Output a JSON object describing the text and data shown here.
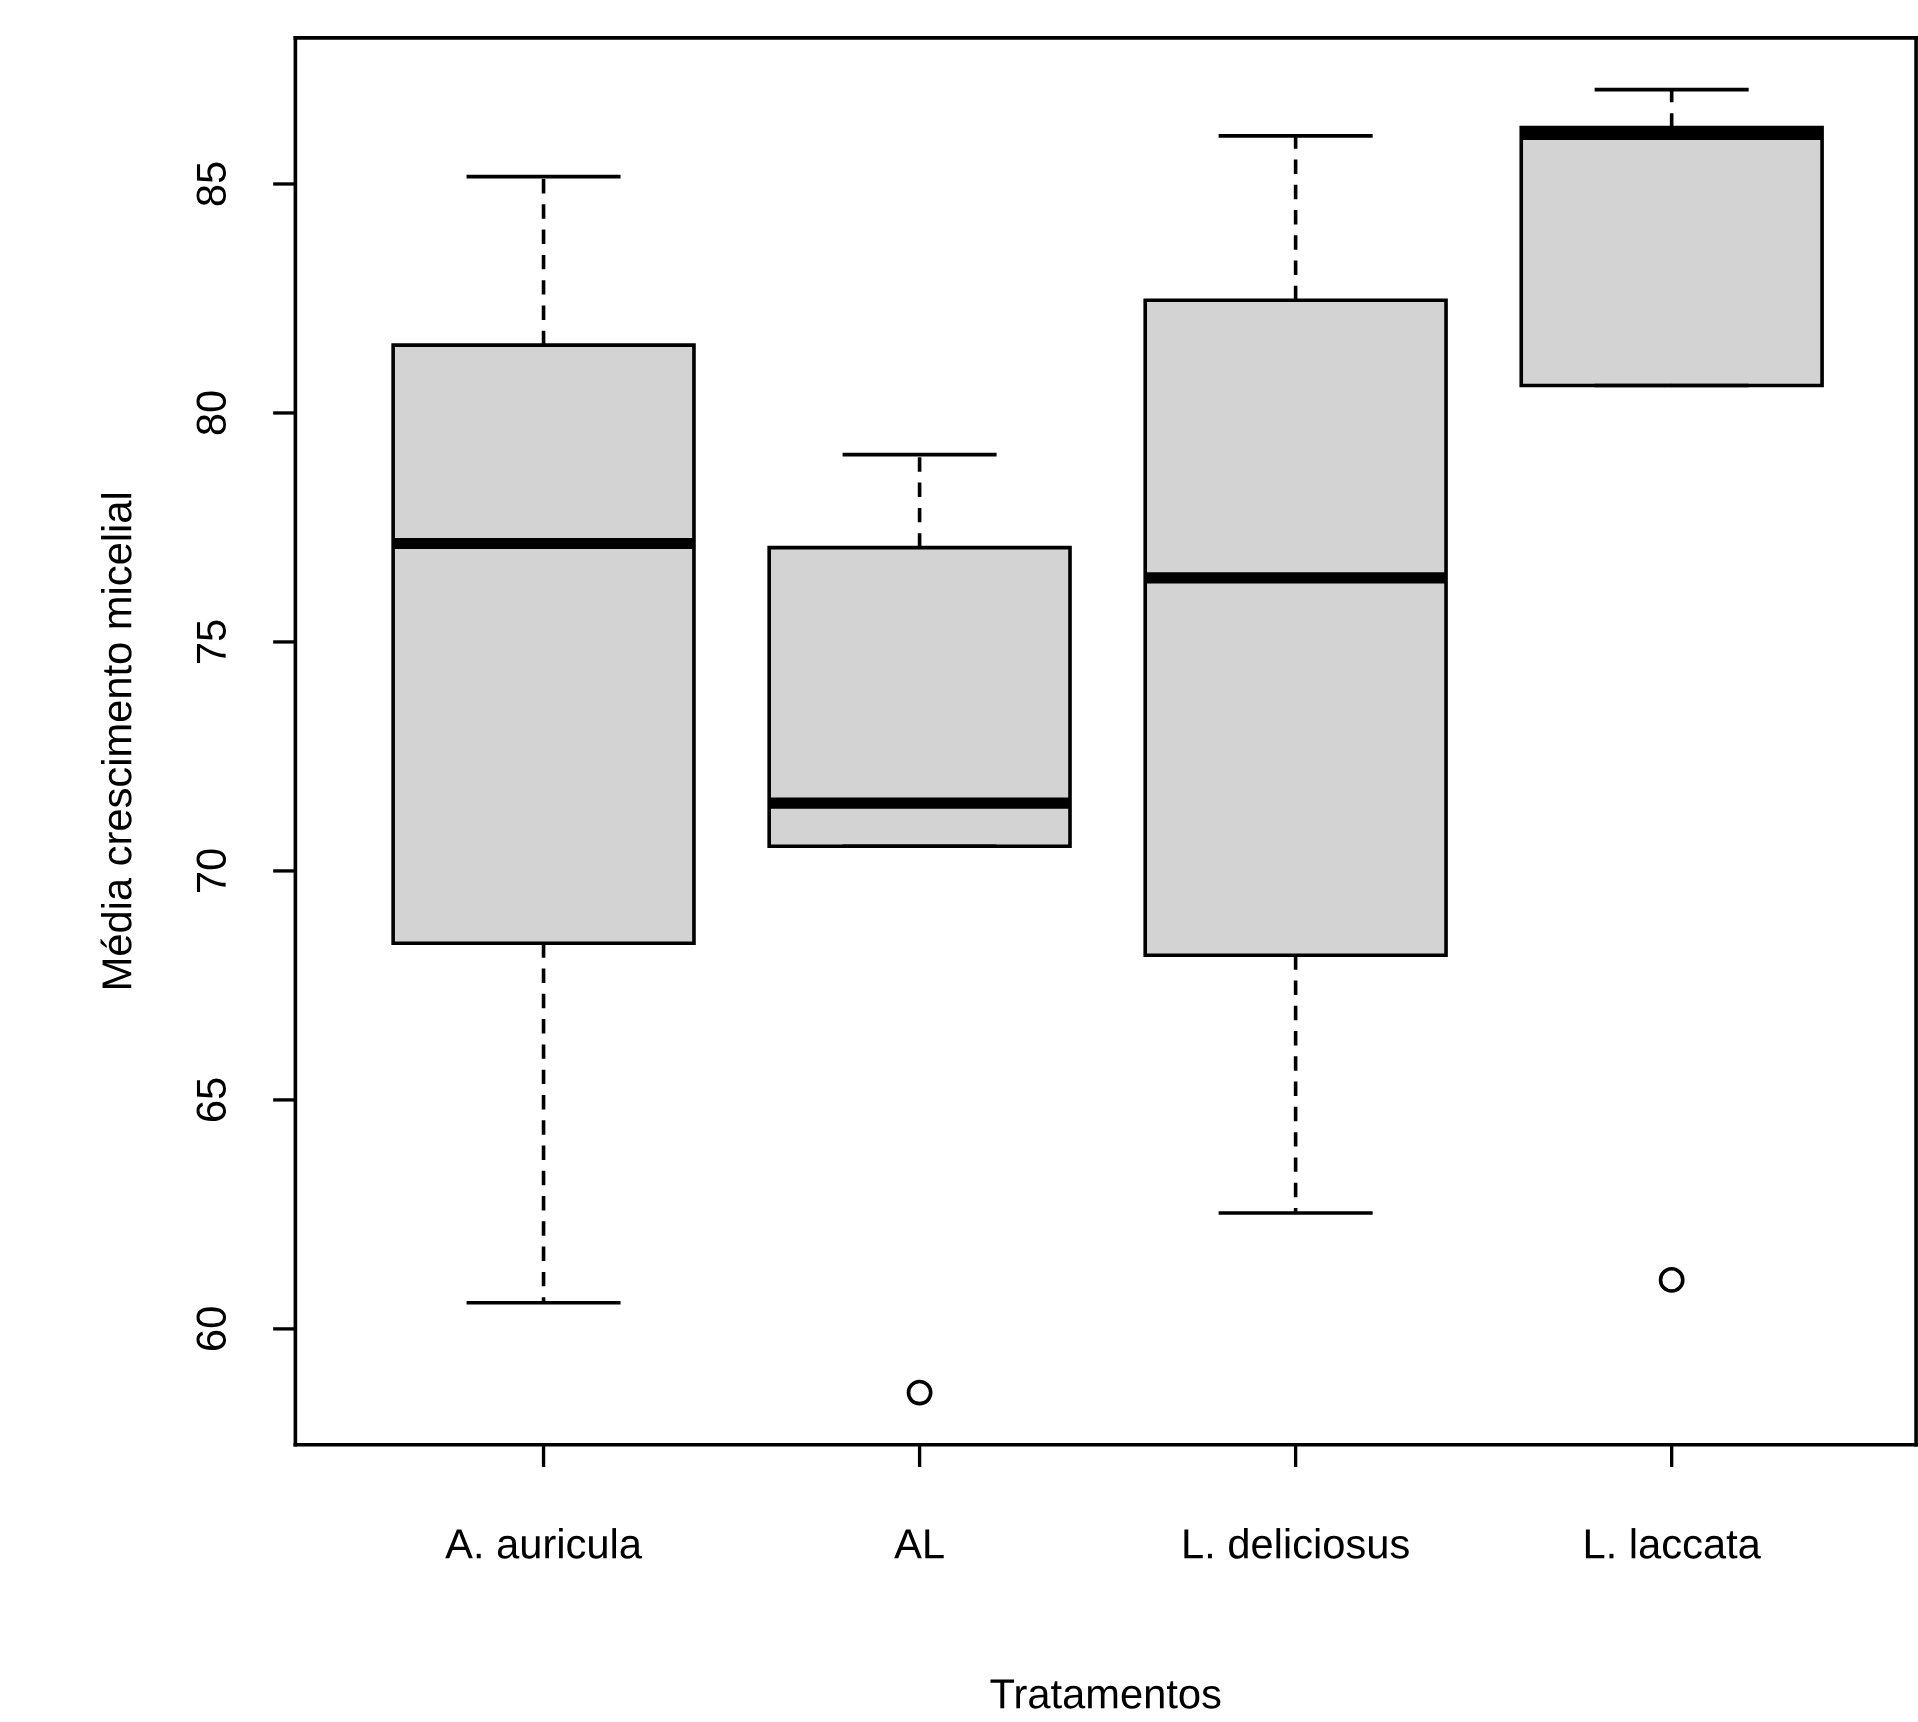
{
  "chart_data": {
    "type": "box",
    "xlabel": "Tratamentos",
    "ylabel": "Média crescimento micelial",
    "categories": [
      "A. auricula",
      "AL",
      "L. deliciosus",
      "L. laccata"
    ],
    "boxes": [
      {
        "low": 60.57,
        "q1": 68.42,
        "median": 77.15,
        "q3": 81.48,
        "high": 85.16
      },
      {
        "low": 70.54,
        "q1": 70.54,
        "median": 71.48,
        "q3": 77.06,
        "high": 79.09,
        "outliers": [
          58.61
        ]
      },
      {
        "low": 62.53,
        "q1": 68.16,
        "median": 76.4,
        "q3": 82.46,
        "high": 86.05
      },
      {
        "low": 80.6,
        "q1": 80.6,
        "median": 86.08,
        "q3": 86.23,
        "high": 87.06,
        "outliers": [
          61.07
        ]
      }
    ],
    "color": "#d3d3d3",
    "ylim": [
      57.47,
      88.19
    ],
    "yticks": [
      60,
      65,
      70,
      75,
      80,
      85
    ],
    "grid": false
  }
}
